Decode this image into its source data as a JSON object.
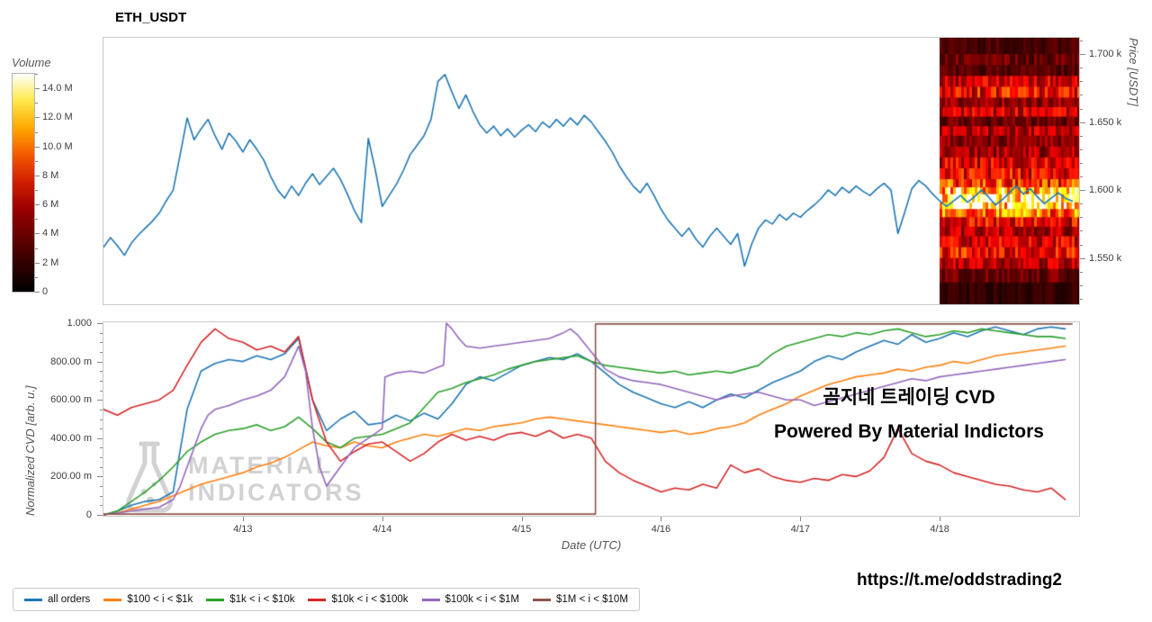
{
  "page": {
    "title": "ETH_USDT",
    "footer_link": "https://t.me/oddstrading2"
  },
  "overlay": {
    "line1": "곰지네 트레이딩 CVD",
    "line2": "Powered By Material Indictors"
  },
  "watermark": {
    "line1": "MATERIAL",
    "line2": "INDICATORS"
  },
  "chart_data": [
    {
      "type": "line",
      "name": "price-panel-with-volume-heatmap",
      "ylabel": "Price [USDT]",
      "ylim": [
        1516,
        1712
      ],
      "xlim": [
        0,
        7
      ],
      "ytick_minor": 10,
      "yticks": [
        {
          "v": 1550,
          "label": "1.550 k"
        },
        {
          "v": 1600,
          "label": "1.600 k"
        },
        {
          "v": 1650,
          "label": "1.650 k"
        },
        {
          "v": 1700,
          "label": "1.700 k"
        }
      ],
      "series": [
        {
          "name": "ETH_USDT price",
          "color": "#1f77b4",
          "x0": 0,
          "dx": 0.05,
          "y": [
            1558,
            1565,
            1559,
            1552,
            1561,
            1567,
            1572,
            1577,
            1583,
            1592,
            1600,
            1626,
            1653,
            1637,
            1645,
            1652,
            1640,
            1630,
            1642,
            1636,
            1628,
            1637,
            1630,
            1622,
            1610,
            1600,
            1594,
            1603,
            1596,
            1605,
            1612,
            1604,
            1610,
            1616,
            1608,
            1597,
            1585,
            1576,
            1638,
            1615,
            1588,
            1596,
            1604,
            1614,
            1626,
            1633,
            1640,
            1652,
            1680,
            1685,
            1672,
            1660,
            1670,
            1658,
            1648,
            1642,
            1647,
            1640,
            1645,
            1639,
            1644,
            1648,
            1643,
            1650,
            1646,
            1652,
            1647,
            1653,
            1648,
            1655,
            1650,
            1643,
            1636,
            1628,
            1618,
            1610,
            1603,
            1598,
            1605,
            1596,
            1586,
            1578,
            1572,
            1566,
            1572,
            1564,
            1558,
            1566,
            1572,
            1566,
            1560,
            1568,
            1544,
            1560,
            1572,
            1578,
            1575,
            1582,
            1578,
            1583,
            1580,
            1585,
            1589,
            1594,
            1600,
            1596,
            1602,
            1598,
            1603,
            1599,
            1596,
            1601,
            1605,
            1600,
            1568,
            1584,
            1601,
            1607,
            1603,
            1597,
            1592,
            1588,
            1592,
            1596,
            1591,
            1595,
            1600,
            1595,
            1589,
            1593,
            1598,
            1603,
            1597,
            1601,
            1595,
            1590,
            1594,
            1598,
            1594,
            1592
          ]
        }
      ],
      "heatmap": {
        "t_start": 6.0,
        "rows": [
          [
            1712,
            1700,
            0.1
          ],
          [
            1700,
            1692,
            0.16
          ],
          [
            1692,
            1684,
            0.12
          ],
          [
            1684,
            1676,
            0.3
          ],
          [
            1676,
            1668,
            0.38
          ],
          [
            1668,
            1661,
            0.22
          ],
          [
            1661,
            1654,
            0.3
          ],
          [
            1654,
            1647,
            0.16
          ],
          [
            1647,
            1640,
            0.26
          ],
          [
            1640,
            1632,
            0.2
          ],
          [
            1632,
            1624,
            0.24
          ],
          [
            1624,
            1616,
            0.32
          ],
          [
            1616,
            1608,
            0.36
          ],
          [
            1608,
            1602,
            0.46
          ],
          [
            1602,
            1597,
            0.72
          ],
          [
            1597,
            1591,
            0.97
          ],
          [
            1591,
            1586,
            0.85
          ],
          [
            1586,
            1580,
            0.55
          ],
          [
            1580,
            1573,
            0.36
          ],
          [
            1573,
            1566,
            0.26
          ],
          [
            1566,
            1558,
            0.32
          ],
          [
            1558,
            1550,
            0.38
          ],
          [
            1550,
            1542,
            0.26
          ],
          [
            1542,
            1532,
            0.16
          ],
          [
            1532,
            1516,
            0.08
          ]
        ]
      },
      "colorbar": {
        "title": "Volume",
        "vmin": 0,
        "vmax": 15,
        "minor_step": 1,
        "ticks": [
          {
            "v": 14,
            "label": "14.0 M"
          },
          {
            "v": 12,
            "label": "12.0 M"
          },
          {
            "v": 10,
            "label": "10.0 M"
          },
          {
            "v": 8,
            "label": "8 M"
          },
          {
            "v": 6,
            "label": "6 M"
          },
          {
            "v": 4,
            "label": "4 M"
          },
          {
            "v": 2,
            "label": "2 M"
          },
          {
            "v": 0,
            "label": "0"
          }
        ]
      }
    },
    {
      "type": "line",
      "name": "normalized-cvd-panel",
      "ylabel": "Normalized CVD [arb. u.]",
      "xlabel": "Date (UTC)",
      "ylim": [
        0,
        1
      ],
      "xlim": [
        0,
        7
      ],
      "ytick_minor": 0.05,
      "yticks": [
        {
          "v": 0,
          "label": "0"
        },
        {
          "v": 0.2,
          "label": "200.00 m"
        },
        {
          "v": 0.4,
          "label": "400.00 m"
        },
        {
          "v": 0.6,
          "label": "600.00 m"
        },
        {
          "v": 0.8,
          "label": "800.00 m"
        },
        {
          "v": 1,
          "label": "1.000"
        }
      ],
      "xticks": [
        {
          "v": 1,
          "label": "4/13"
        },
        {
          "v": 2,
          "label": "4/14"
        },
        {
          "v": 3,
          "label": "4/15"
        },
        {
          "v": 4,
          "label": "4/16"
        },
        {
          "v": 5,
          "label": "4/17"
        },
        {
          "v": 6,
          "label": "4/18"
        }
      ],
      "series": [
        {
          "name": "all orders",
          "color": "#1f77b4",
          "x0": 0,
          "dx": 0.1,
          "y": [
            0.0,
            0.02,
            0.05,
            0.07,
            0.08,
            0.12,
            0.55,
            0.75,
            0.79,
            0.81,
            0.8,
            0.83,
            0.81,
            0.84,
            0.92,
            0.6,
            0.44,
            0.5,
            0.54,
            0.47,
            0.48,
            0.52,
            0.49,
            0.53,
            0.5,
            0.58,
            0.68,
            0.72,
            0.7,
            0.74,
            0.78,
            0.8,
            0.82,
            0.81,
            0.84,
            0.8,
            0.74,
            0.68,
            0.64,
            0.61,
            0.58,
            0.56,
            0.59,
            0.56,
            0.6,
            0.63,
            0.61,
            0.65,
            0.69,
            0.72,
            0.75,
            0.8,
            0.83,
            0.81,
            0.85,
            0.88,
            0.91,
            0.89,
            0.94,
            0.9,
            0.92,
            0.95,
            0.93,
            0.96,
            0.98,
            0.96,
            0.94,
            0.97,
            0.98,
            0.97
          ]
        },
        {
          "name": "$100 < i < $1k",
          "color": "#ff7f0e",
          "x0": 0,
          "dx": 0.1,
          "y": [
            0.0,
            0.01,
            0.03,
            0.05,
            0.07,
            0.1,
            0.13,
            0.16,
            0.18,
            0.2,
            0.22,
            0.25,
            0.27,
            0.3,
            0.34,
            0.38,
            0.36,
            0.35,
            0.38,
            0.36,
            0.35,
            0.38,
            0.4,
            0.42,
            0.41,
            0.43,
            0.45,
            0.44,
            0.46,
            0.47,
            0.48,
            0.5,
            0.51,
            0.5,
            0.49,
            0.48,
            0.47,
            0.46,
            0.45,
            0.44,
            0.43,
            0.44,
            0.42,
            0.43,
            0.45,
            0.46,
            0.48,
            0.52,
            0.55,
            0.58,
            0.62,
            0.65,
            0.68,
            0.7,
            0.72,
            0.73,
            0.74,
            0.76,
            0.75,
            0.77,
            0.78,
            0.8,
            0.79,
            0.81,
            0.83,
            0.84,
            0.85,
            0.86,
            0.87,
            0.88
          ]
        },
        {
          "name": "$1k < i < $10k",
          "color": "#2ca02c",
          "x0": 0,
          "dx": 0.1,
          "y": [
            0.0,
            0.02,
            0.07,
            0.12,
            0.18,
            0.25,
            0.33,
            0.38,
            0.42,
            0.44,
            0.45,
            0.47,
            0.44,
            0.46,
            0.51,
            0.45,
            0.38,
            0.35,
            0.4,
            0.41,
            0.42,
            0.45,
            0.48,
            0.56,
            0.64,
            0.66,
            0.69,
            0.71,
            0.73,
            0.76,
            0.78,
            0.8,
            0.81,
            0.82,
            0.83,
            0.8,
            0.78,
            0.77,
            0.76,
            0.75,
            0.74,
            0.75,
            0.73,
            0.74,
            0.75,
            0.74,
            0.76,
            0.78,
            0.84,
            0.88,
            0.9,
            0.92,
            0.94,
            0.93,
            0.95,
            0.94,
            0.96,
            0.97,
            0.95,
            0.93,
            0.94,
            0.96,
            0.95,
            0.97,
            0.96,
            0.95,
            0.94,
            0.93,
            0.93,
            0.92
          ]
        },
        {
          "name": "$10k < i < $100k",
          "color": "#d62728",
          "x0": 0,
          "dx": 0.1,
          "y": [
            0.55,
            0.52,
            0.56,
            0.58,
            0.6,
            0.65,
            0.78,
            0.9,
            0.97,
            0.92,
            0.9,
            0.86,
            0.88,
            0.85,
            0.93,
            0.6,
            0.38,
            0.28,
            0.33,
            0.37,
            0.38,
            0.33,
            0.28,
            0.32,
            0.38,
            0.42,
            0.39,
            0.41,
            0.39,
            0.42,
            0.43,
            0.41,
            0.44,
            0.4,
            0.42,
            0.4,
            0.28,
            0.22,
            0.18,
            0.15,
            0.12,
            0.14,
            0.13,
            0.16,
            0.14,
            0.26,
            0.22,
            0.24,
            0.2,
            0.18,
            0.17,
            0.19,
            0.18,
            0.21,
            0.2,
            0.23,
            0.3,
            0.45,
            0.32,
            0.28,
            0.26,
            0.22,
            0.2,
            0.18,
            0.16,
            0.15,
            0.13,
            0.12,
            0.14,
            0.08
          ]
        },
        {
          "name": "$100k < i < $1M",
          "color": "#9467bd",
          "x": [
            0,
            0.2,
            0.4,
            0.5,
            0.55,
            0.6,
            0.65,
            0.7,
            0.75,
            0.8,
            0.9,
            1.0,
            1.1,
            1.2,
            1.3,
            1.35,
            1.4,
            1.45,
            1.5,
            1.55,
            1.6,
            1.7,
            1.8,
            1.9,
            2.0,
            2.02,
            2.1,
            2.2,
            2.3,
            2.4,
            2.44,
            2.46,
            2.5,
            2.55,
            2.6,
            2.7,
            2.8,
            2.9,
            3.0,
            3.1,
            3.2,
            3.3,
            3.35,
            3.4,
            3.5,
            3.6,
            3.7,
            3.8,
            3.9,
            4.0,
            4.1,
            4.2,
            4.3,
            4.4,
            4.5,
            4.6,
            4.7,
            4.8,
            4.9,
            5.0,
            5.1,
            5.2,
            5.3,
            5.4,
            5.5,
            5.6,
            5.7,
            5.8,
            5.9,
            6.0,
            6.1,
            6.2,
            6.3,
            6.4,
            6.5,
            6.6,
            6.7,
            6.8,
            6.9
          ],
          "y": [
            0.0,
            0.02,
            0.04,
            0.08,
            0.15,
            0.25,
            0.35,
            0.45,
            0.52,
            0.55,
            0.57,
            0.6,
            0.62,
            0.65,
            0.72,
            0.8,
            0.88,
            0.75,
            0.45,
            0.25,
            0.15,
            0.25,
            0.35,
            0.4,
            0.45,
            0.72,
            0.74,
            0.75,
            0.74,
            0.77,
            0.78,
            1.0,
            0.97,
            0.92,
            0.88,
            0.87,
            0.88,
            0.89,
            0.9,
            0.91,
            0.92,
            0.95,
            0.97,
            0.94,
            0.85,
            0.76,
            0.72,
            0.7,
            0.69,
            0.68,
            0.66,
            0.64,
            0.62,
            0.6,
            0.62,
            0.63,
            0.64,
            0.62,
            0.6,
            0.6,
            0.57,
            0.59,
            0.61,
            0.63,
            0.65,
            0.67,
            0.69,
            0.71,
            0.7,
            0.72,
            0.73,
            0.74,
            0.75,
            0.76,
            0.77,
            0.78,
            0.79,
            0.8,
            0.81
          ]
        },
        {
          "name": "$1M < i < $10M",
          "color": "#8c564b",
          "x": [
            0,
            3.53,
            3.53,
            6.95
          ],
          "y": [
            0.004,
            0.004,
            0.996,
            0.996
          ]
        }
      ]
    }
  ]
}
